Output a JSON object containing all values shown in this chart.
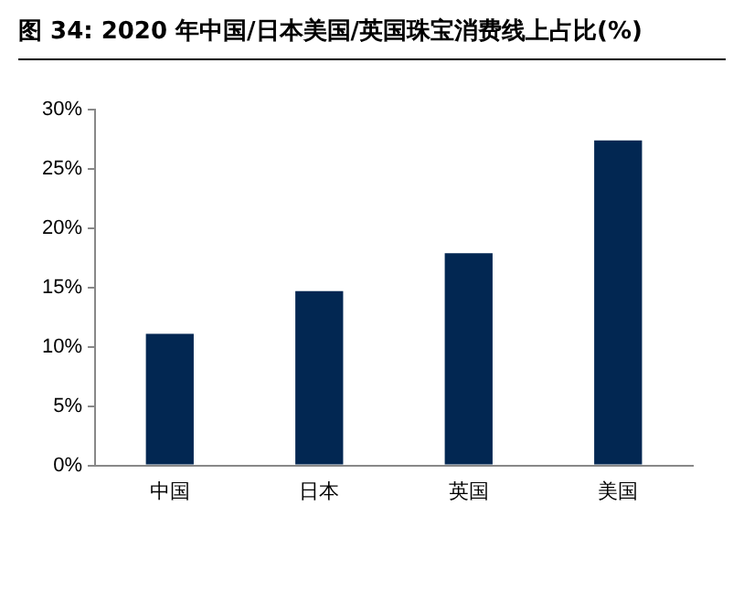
{
  "chart_data": {
    "type": "bar",
    "title": "图 34: 2020 年中国/日本美国/英国珠宝消费线上占比(%)",
    "categories": [
      "中国",
      "日本",
      "英国",
      "美国"
    ],
    "values": [
      11.1,
      14.7,
      17.9,
      27.4
    ],
    "color": "#022752",
    "ylim": [
      0,
      30
    ],
    "yticks": [
      {
        "value": 0,
        "label": "0%"
      },
      {
        "value": 5,
        "label": "5%"
      },
      {
        "value": 10,
        "label": "10%"
      },
      {
        "value": 15,
        "label": "15%"
      },
      {
        "value": 20,
        "label": "20%"
      },
      {
        "value": 25,
        "label": "25%"
      },
      {
        "value": 30,
        "label": "30%"
      }
    ],
    "grid": false,
    "legend": false
  }
}
